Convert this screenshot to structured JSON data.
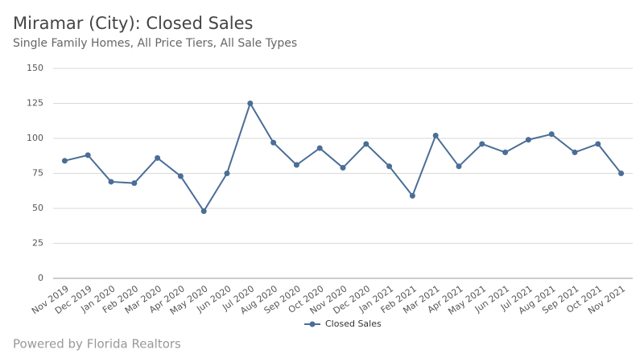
{
  "chart_data": {
    "type": "line",
    "title": "Miramar (City): Closed Sales",
    "subtitle": "Single Family Homes, All Price Tiers, All Sale Types",
    "footer": "Powered by Florida Realtors",
    "categories": [
      "Nov 2019",
      "Dec 2019",
      "Jan 2020",
      "Feb 2020",
      "Mar 2020",
      "Apr 2020",
      "May 2020",
      "Jun 2020",
      "Jul 2020",
      "Aug 2020",
      "Sep 2020",
      "Oct 2020",
      "Nov 2020",
      "Dec 2020",
      "Jan 2021",
      "Feb 2021",
      "Mar 2021",
      "Apr 2021",
      "May 2021",
      "Jun 2021",
      "Jul 2021",
      "Aug 2021",
      "Sep 2021",
      "Oct 2021",
      "Nov 2021"
    ],
    "series": [
      {
        "name": "Closed Sales",
        "color": "#4a6e96",
        "values": [
          84,
          88,
          69,
          68,
          86,
          73,
          48,
          75,
          125,
          97,
          81,
          93,
          79,
          96,
          80,
          59,
          102,
          80,
          96,
          90,
          99,
          103,
          90,
          96,
          75
        ]
      }
    ],
    "ylim": [
      0,
      150
    ],
    "yticks": [
      0,
      25,
      50,
      75,
      100,
      125,
      150
    ],
    "grid": true
  }
}
